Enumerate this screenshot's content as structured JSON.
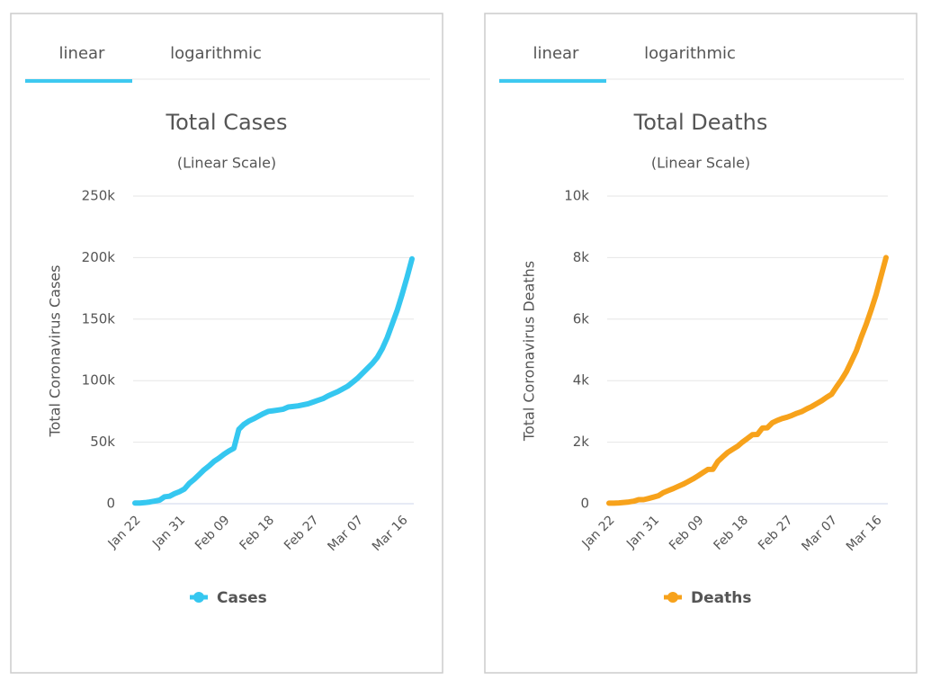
{
  "chart_data": [
    {
      "type": "line",
      "tabs": [
        "linear",
        "logarithmic"
      ],
      "title": "Total Cases",
      "subtitle": "(Linear Scale)",
      "y_label": "Total Coronavirus Cases",
      "categories": [
        "Jan 22",
        null,
        null,
        null,
        null,
        null,
        null,
        null,
        null,
        "Jan 31",
        null,
        null,
        null,
        null,
        null,
        null,
        null,
        null,
        "Feb 09",
        null,
        null,
        null,
        null,
        null,
        null,
        null,
        null,
        "Feb 18",
        null,
        null,
        null,
        null,
        null,
        null,
        null,
        null,
        "Feb 27",
        null,
        null,
        null,
        null,
        null,
        null,
        null,
        null,
        "Mar 07",
        null,
        null,
        null,
        null,
        null,
        null,
        null,
        null,
        "Mar 16",
        null,
        null
      ],
      "series": [
        {
          "name": "Cases",
          "color": "#35c7f0",
          "values": [
            600,
            600,
            900,
            1400,
            2100,
            2900,
            5600,
            6100,
            8200,
            9800,
            11900,
            16600,
            19900,
            23700,
            27600,
            30800,
            34400,
            37100,
            40200,
            42800,
            45000,
            60400,
            64400,
            67100,
            69000,
            71200,
            73300,
            75100,
            75600,
            76200,
            76800,
            78600,
            79000,
            79500,
            80300,
            81200,
            82600,
            84000,
            85400,
            87600,
            89300,
            91100,
            93300,
            95500,
            98700,
            102000,
            106000,
            110000,
            114000,
            119000,
            126000,
            135000,
            146000,
            157000,
            170000,
            184000,
            199000
          ]
        }
      ],
      "ylim": [
        0,
        250000
      ],
      "yticks": [
        0,
        {
          "value": 50000,
          "label": "50k"
        },
        {
          "value": 100000,
          "label": "100k"
        },
        {
          "value": 150000,
          "label": "150k"
        },
        {
          "value": 200000,
          "label": "200k"
        },
        {
          "value": 250000,
          "label": "250k"
        }
      ],
      "grid": true
    },
    {
      "type": "line",
      "tabs": [
        "linear",
        "logarithmic"
      ],
      "title": "Total Deaths",
      "subtitle": "(Linear Scale)",
      "y_label": "Total Coronavirus Deaths",
      "categories": [
        "Jan 22",
        null,
        null,
        null,
        null,
        null,
        null,
        null,
        null,
        "Jan 31",
        null,
        null,
        null,
        null,
        null,
        null,
        null,
        null,
        "Feb 09",
        null,
        null,
        null,
        null,
        null,
        null,
        null,
        null,
        "Feb 18",
        null,
        null,
        null,
        null,
        null,
        null,
        null,
        null,
        "Feb 27",
        null,
        null,
        null,
        null,
        null,
        null,
        null,
        null,
        "Mar 07",
        null,
        null,
        null,
        null,
        null,
        null,
        null,
        null,
        "Mar 16",
        null,
        null
      ],
      "series": [
        {
          "name": "Deaths",
          "color": "#f7a21b",
          "values": [
            17,
            18,
            26,
            42,
            56,
            82,
            131,
            133,
            171,
            213,
            259,
            362,
            426,
            492,
            564,
            634,
            719,
            806,
            906,
            1013,
            1113,
            1118,
            1371,
            1523,
            1666,
            1770,
            1868,
            2007,
            2122,
            2247,
            2251,
            2458,
            2469,
            2629,
            2708,
            2770,
            2814,
            2872,
            2941,
            2996,
            3085,
            3160,
            3254,
            3348,
            3460,
            3558,
            3802,
            4030,
            4292,
            4629,
            4972,
            5421,
            5833,
            6300,
            6800,
            7400,
            8000
          ]
        }
      ],
      "ylim": [
        0,
        10000
      ],
      "yticks": [
        0,
        {
          "value": 2000,
          "label": "2k"
        },
        {
          "value": 4000,
          "label": "4k"
        },
        {
          "value": 6000,
          "label": "6k"
        },
        {
          "value": 8000,
          "label": "8k"
        },
        {
          "value": 10000,
          "label": "10k"
        }
      ],
      "grid": true
    }
  ]
}
